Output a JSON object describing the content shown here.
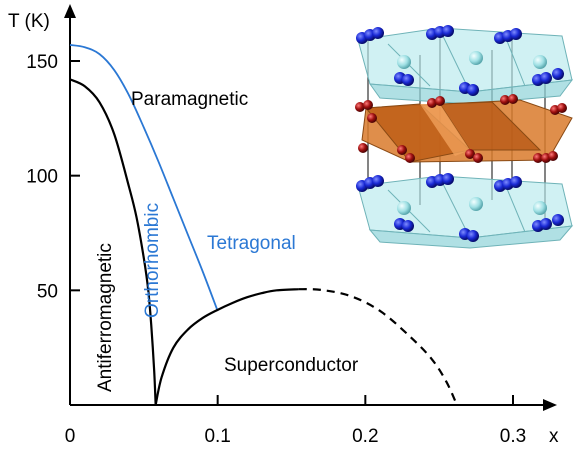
{
  "chart_data": {
    "type": "line",
    "xlabel": "x",
    "ylabel": "T (K)",
    "xlim": [
      0,
      0.33
    ],
    "ylim": [
      0,
      170
    ],
    "x_ticks": [
      "0",
      "0.1",
      "0.2",
      "0.3"
    ],
    "x_tick_values": [
      0,
      0.1,
      0.2,
      0.3
    ],
    "y_ticks": [
      "50",
      "100",
      "150"
    ],
    "y_tick_values": [
      50,
      100,
      150
    ],
    "grid": false,
    "colors": {
      "axis": "#000000",
      "black_line": "#000000",
      "blue_line": "#2b78d4"
    },
    "series": [
      {
        "key": "antiferromagnetic_boundary",
        "style": "solid",
        "color": "#000000",
        "x": [
          0,
          0.01,
          0.02,
          0.03,
          0.04,
          0.045,
          0.05,
          0.053,
          0.055,
          0.057,
          0.058
        ],
        "y": [
          142,
          139,
          132,
          118,
          95,
          82,
          64,
          50,
          35,
          15,
          0
        ]
      },
      {
        "key": "structural_boundary",
        "style": "solid",
        "color": "#2b78d4",
        "x": [
          0,
          0.01,
          0.02,
          0.03,
          0.04,
          0.05,
          0.06,
          0.07,
          0.08,
          0.09,
          0.1
        ],
        "y": [
          157,
          156,
          153,
          146,
          135,
          121,
          106,
          90,
          74,
          58,
          41
        ]
      },
      {
        "key": "superconducting_dome",
        "style": "solid",
        "color": "#000000",
        "x": [
          0.058,
          0.062,
          0.07,
          0.08,
          0.09,
          0.1,
          0.11,
          0.12,
          0.13,
          0.14,
          0.155
        ],
        "y": [
          0,
          12,
          25,
          33,
          38,
          41.5,
          44.5,
          47,
          48.8,
          50,
          50.5
        ]
      },
      {
        "key": "superconducting_dome_extrapolated",
        "style": "dashed",
        "color": "#000000",
        "x": [
          0.155,
          0.17,
          0.19,
          0.21,
          0.23,
          0.245,
          0.255,
          0.262
        ],
        "y": [
          50.5,
          50.2,
          47.5,
          41,
          30,
          20,
          10,
          0
        ]
      }
    ],
    "annotations": {
      "paramagnetic": "Paramagnetic",
      "orthorhombic": "Orthorhombic",
      "tetragonal": "Tetragonal",
      "antiferromagnetic": "Antiferromagnetic",
      "superconductor": "Superconductor"
    },
    "inset": {
      "type": "crystal-structure-image",
      "atom_colors": {
        "blue": "#1a2ad6",
        "red": "#a01010",
        "cyan": "#9fe0e4",
        "orange": "#d97a2c"
      }
    }
  }
}
